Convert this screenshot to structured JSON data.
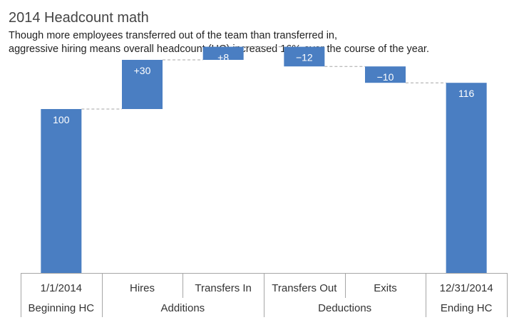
{
  "header": {
    "title": "2014 Headcount math",
    "subtitle_lines": [
      "Though more employees transferred out of the team than transferred in,",
      "aggressive hiring means overall headcount (HC) increased 16% over the course of the year."
    ]
  },
  "colors": {
    "bar": "#4a7ec2",
    "connector": "#a6a6a6",
    "axis": "#a6a6a6",
    "label_on_bar": "#ffffff",
    "category_text": "#333333"
  },
  "chart_data": {
    "type": "bar",
    "subtype": "waterfall",
    "title": "2014 Headcount math",
    "categories": [
      "1/1/2014",
      "Hires",
      "Transfers In",
      "Transfers Out",
      "Exits",
      "12/31/2014"
    ],
    "values": [
      100,
      30,
      8,
      -12,
      -10,
      116
    ],
    "value_labels": [
      "100",
      "+30",
      "+8",
      "−12",
      "−10",
      "116"
    ],
    "bar_kind": [
      "total",
      "delta",
      "delta",
      "delta",
      "delta",
      "total"
    ],
    "groups": [
      {
        "label": "Beginning HC",
        "span": [
          0,
          0
        ]
      },
      {
        "label": "Additions",
        "span": [
          1,
          2
        ]
      },
      {
        "label": "Deductions",
        "span": [
          3,
          4
        ]
      },
      {
        "label": "Ending HC",
        "span": [
          5,
          5
        ]
      }
    ],
    "ylim": [
      0,
      140
    ],
    "grid": false,
    "legend": "none",
    "connectors": true
  }
}
